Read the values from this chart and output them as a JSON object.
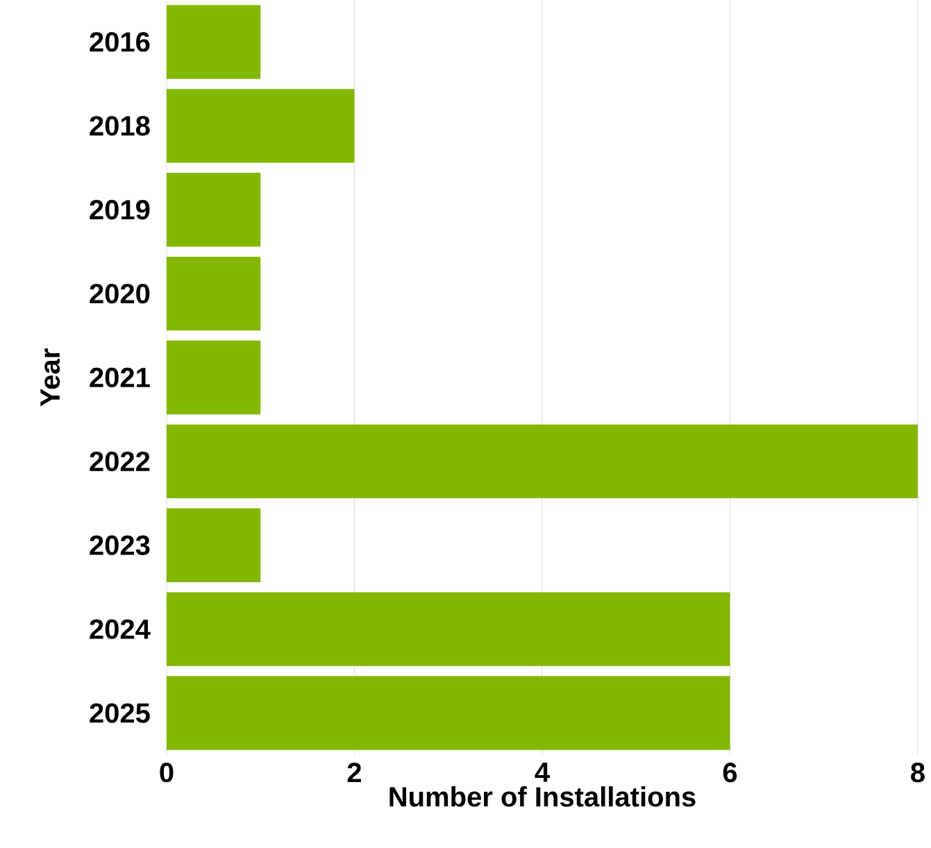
{
  "chart_data": {
    "type": "bar",
    "orientation": "horizontal",
    "xlabel": "Number of Installations",
    "ylabel": "Year",
    "categories": [
      "2016",
      "2018",
      "2019",
      "2020",
      "2021",
      "2022",
      "2023",
      "2024",
      "2025"
    ],
    "values": [
      1,
      2,
      1,
      1,
      1,
      8,
      1,
      6,
      6
    ],
    "color": "#84b800",
    "xlim": [
      0,
      8
    ],
    "xticks": [
      0,
      2,
      4,
      6,
      8
    ],
    "grid": "x"
  }
}
